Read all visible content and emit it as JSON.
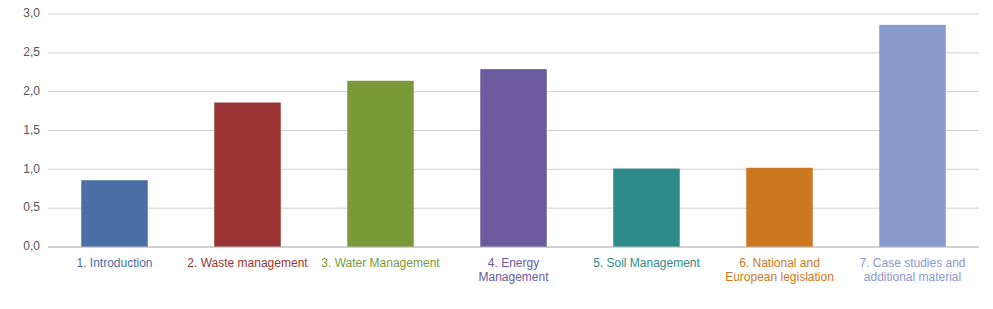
{
  "chart_data": {
    "type": "bar",
    "categories": [
      "1. Introduction",
      "2. Waste management",
      "3. Water Management",
      "4. Energy\nManagement",
      "5. Soil Management",
      "6. National and\nEuropean legislation",
      "7. Case studies and\nadditional material"
    ],
    "values": [
      0.86,
      1.86,
      2.14,
      2.29,
      1.01,
      1.02,
      2.86
    ],
    "colors": [
      "#4A6FA5",
      "#9B3535",
      "#7A9A3A",
      "#6B5B9E",
      "#2E8B8B",
      "#CC7722",
      "#8899CC"
    ],
    "ylim": [
      0,
      3.0
    ],
    "yticks": [
      {
        "value": 0.0,
        "label": "0,0"
      },
      {
        "value": 0.5,
        "label": "0,5"
      },
      {
        "value": 1.0,
        "label": "1,0"
      },
      {
        "value": 1.5,
        "label": "1,5"
      },
      {
        "value": 2.0,
        "label": "2,0"
      },
      {
        "value": 2.5,
        "label": "2,5"
      },
      {
        "value": 3.0,
        "label": "3,0"
      }
    ],
    "grid": true
  }
}
